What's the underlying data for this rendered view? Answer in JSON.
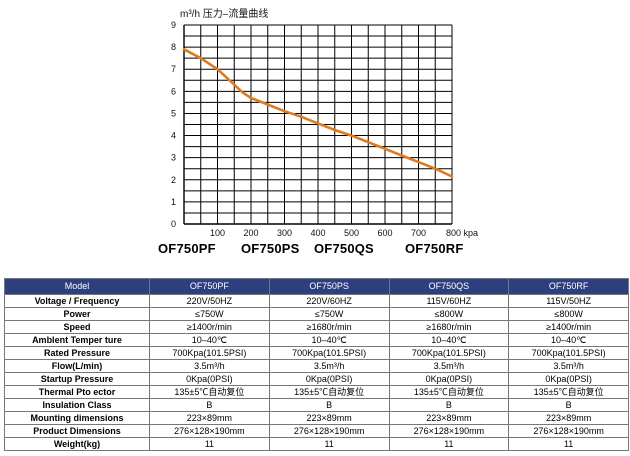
{
  "chart_data": {
    "type": "line",
    "title": "m³/h  压力–流量曲线",
    "xlabel": "kpa",
    "ylabel": "",
    "xlim": [
      0,
      800
    ],
    "ylim": [
      0,
      9
    ],
    "x_ticks": [
      100,
      200,
      300,
      400,
      500,
      600,
      700,
      800
    ],
    "x_tick_labels": [
      "100",
      "200",
      "300",
      "400",
      "500",
      "600",
      "700",
      "800 kpa"
    ],
    "y_ticks": [
      0,
      1,
      2,
      3,
      4,
      5,
      6,
      7,
      8,
      9
    ],
    "grid": true,
    "line_color": "#e07a1f",
    "series": [
      {
        "name": "",
        "x": [
          0,
          50,
          100,
          150,
          175,
          200,
          250,
          300,
          350,
          400,
          450,
          500,
          550,
          600,
          650,
          700,
          750,
          800
        ],
        "y": [
          7.9,
          7.5,
          7.0,
          6.3,
          5.95,
          5.7,
          5.4,
          5.1,
          4.85,
          4.55,
          4.25,
          4.0,
          3.7,
          3.4,
          3.1,
          2.8,
          2.5,
          2.15
        ]
      }
    ]
  },
  "model_labels": [
    "OF750PF",
    "OF750PS",
    "OF750QS",
    "OF750RF"
  ],
  "spec_table": {
    "headers": [
      "Model",
      "OF750PF",
      "OF750PS",
      "OF750QS",
      "OF750RF"
    ],
    "rows": [
      [
        "Voltage / Frequency",
        "220V/50HZ",
        "220V/60HZ",
        "115V/60HZ",
        "115V/50HZ"
      ],
      [
        "Power",
        "≤750W",
        "≤750W",
        "≤800W",
        "≤800W"
      ],
      [
        "Speed",
        "≥1400r/min",
        "≥1680r/min",
        "≥1680r/min",
        "≥1400r/min"
      ],
      [
        "Amblent Temper ture",
        "10–40℃",
        "10–40℃",
        "10–40℃",
        "10–40℃"
      ],
      [
        "Rated Pressure",
        "700Kpa(101.5PSI)",
        "700Kpa(101.5PSI)",
        "700Kpa(101.5PSI)",
        "700Kpa(101.5PSI)"
      ],
      [
        "Flow(L/min)",
        "3.5m³/h",
        "3.5m³/h",
        "3.5m³/h",
        "3.5m³/h"
      ],
      [
        "Startup Pressure",
        "0Kpa(0PSI)",
        "0Kpa(0PSI)",
        "0Kpa(0PSI)",
        "0Kpa(0PSI)"
      ],
      [
        "Thermal Pto ector",
        "135±5℃自动复位",
        "135±5℃自动复位",
        "135±5℃自动复位",
        "135±5℃自动复位"
      ],
      [
        "Insulation Class",
        "B",
        "B",
        "B",
        "B"
      ],
      [
        "Mounting dimensions",
        "223×89mm",
        "223×89mm",
        "223×89mm",
        "223×89mm"
      ],
      [
        "Product Dimensions",
        "276×128×190mm",
        "276×128×190mm",
        "276×128×190mm",
        "276×128×190mm"
      ],
      [
        "Weight(kg)",
        "11",
        "11",
        "11",
        "11"
      ]
    ]
  }
}
